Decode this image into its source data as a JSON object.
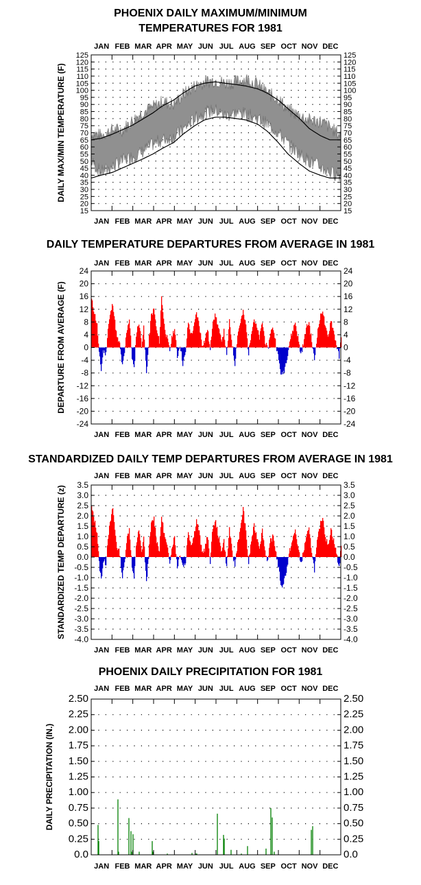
{
  "chart_data": [
    {
      "id": "maxmin",
      "type": "area",
      "title_lines": [
        "PHOENIX DAILY MAXIMUM/MINIMUM",
        "TEMPERATURES FOR 1981"
      ],
      "ylabel": "DAILY MAX/MIN TEMPERATURE (F)",
      "xlabel": "",
      "months": [
        "JAN",
        "FEB",
        "MAR",
        "APR",
        "MAY",
        "JUN",
        "JUL",
        "AUG",
        "SEP",
        "OCT",
        "NOV",
        "DEC"
      ],
      "ylim": [
        15,
        125
      ],
      "yticks": [
        15,
        20,
        25,
        30,
        35,
        40,
        45,
        50,
        55,
        60,
        65,
        70,
        75,
        80,
        85,
        90,
        95,
        100,
        105,
        110,
        115,
        120,
        125
      ],
      "grid": true,
      "series": [
        {
          "role": "observed_max",
          "x_day": [
            1,
            15,
            32,
            46,
            60,
            74,
            91,
            105,
            121,
            135,
            152,
            166,
            182,
            196,
            213,
            227,
            244,
            258,
            274,
            288,
            305,
            319,
            335,
            349,
            365
          ],
          "values": [
            70,
            68,
            72,
            72,
            78,
            84,
            88,
            92,
            90,
            97,
            103,
            106,
            107,
            105,
            106,
            108,
            104,
            98,
            94,
            86,
            82,
            79,
            78,
            74,
            68
          ]
        },
        {
          "role": "observed_min",
          "x_day": [
            1,
            15,
            32,
            46,
            60,
            74,
            91,
            105,
            121,
            135,
            152,
            166,
            182,
            196,
            213,
            227,
            244,
            258,
            274,
            288,
            305,
            319,
            335,
            349,
            365
          ],
          "values": [
            50,
            42,
            46,
            50,
            53,
            56,
            62,
            65,
            67,
            72,
            80,
            84,
            86,
            82,
            84,
            83,
            80,
            76,
            70,
            62,
            55,
            50,
            46,
            42,
            40
          ]
        },
        {
          "role": "normal_max",
          "x_day": [
            1,
            15,
            32,
            46,
            60,
            74,
            91,
            105,
            121,
            135,
            152,
            166,
            182,
            196,
            213,
            227,
            244,
            258,
            274,
            288,
            305,
            319,
            335,
            349,
            365
          ],
          "values": [
            65,
            66,
            69,
            72,
            75,
            79,
            84,
            89,
            93,
            98,
            103,
            105,
            106,
            105,
            104,
            103,
            101,
            98,
            93,
            87,
            80,
            73,
            68,
            65,
            65
          ]
        },
        {
          "role": "normal_min",
          "x_day": [
            1,
            15,
            32,
            46,
            60,
            74,
            91,
            105,
            121,
            135,
            152,
            166,
            182,
            196,
            213,
            227,
            244,
            258,
            274,
            288,
            305,
            319,
            335,
            349,
            365
          ],
          "values": [
            38,
            40,
            42,
            45,
            48,
            51,
            55,
            59,
            63,
            69,
            75,
            79,
            81,
            81,
            80,
            79,
            76,
            71,
            63,
            55,
            48,
            43,
            40,
            38,
            38
          ]
        }
      ]
    },
    {
      "id": "departure",
      "type": "area",
      "title": "DAILY TEMPERATURE DEPARTURES FROM AVERAGE IN 1981",
      "ylabel": "DEPARTURE FROM AVERAGE (F)",
      "xlabel": "",
      "months": [
        "JAN",
        "FEB",
        "MAR",
        "APR",
        "MAY",
        "JUN",
        "JUL",
        "AUG",
        "SEP",
        "OCT",
        "NOV",
        "DEC"
      ],
      "ylim": [
        -24,
        24
      ],
      "yticks": [
        -24,
        -20,
        -16,
        -12,
        -8,
        -4,
        0,
        4,
        8,
        12,
        16,
        20,
        24
      ],
      "grid": true,
      "positive_color": "#ff0000",
      "negative_color": "#0000cc",
      "x_day": [
        1,
        5,
        9,
        12,
        15,
        18,
        22,
        25,
        28,
        32,
        35,
        38,
        42,
        46,
        49,
        52,
        56,
        60,
        63,
        66,
        70,
        74,
        77,
        81,
        85,
        88,
        92,
        96,
        100,
        103,
        107,
        111,
        115,
        119,
        122,
        126,
        130,
        134,
        138,
        142,
        146,
        150,
        154,
        158,
        162,
        166,
        170,
        174,
        178,
        182,
        186,
        190,
        194,
        198,
        202,
        206,
        210,
        214,
        218,
        222,
        226,
        230,
        234,
        238,
        242,
        246,
        250,
        254,
        258,
        262,
        266,
        270,
        274,
        278,
        282,
        286,
        290,
        294,
        298,
        302,
        306,
        310,
        314,
        318,
        322,
        326,
        330,
        334,
        338,
        342,
        346,
        350,
        354,
        358,
        362,
        365
      ],
      "values": [
        15,
        11,
        7,
        -2,
        -7,
        -1,
        -2,
        6,
        10,
        14,
        8,
        3,
        1,
        -6,
        -2,
        5,
        9,
        -3,
        -7,
        4,
        8,
        1,
        6,
        -8,
        3,
        10,
        12,
        5,
        2,
        16,
        7,
        3,
        -1,
        4,
        6,
        -3,
        1,
        -5,
        -2,
        8,
        4,
        6,
        11,
        7,
        1,
        2,
        6,
        -1,
        9,
        10,
        6,
        2,
        5,
        -3,
        8,
        1,
        -5,
        4,
        8,
        11,
        7,
        -2,
        5,
        9,
        6,
        3,
        8,
        2,
        -1,
        5,
        6,
        1,
        -4,
        -9,
        -7,
        -3,
        2,
        5,
        8,
        3,
        -2,
        1,
        6,
        8,
        2,
        -4,
        4,
        9,
        12,
        6,
        3,
        9,
        5,
        1,
        -3,
        3
      ]
    },
    {
      "id": "standardized",
      "type": "area",
      "title": "STANDARDIZED DAILY TEMP DEPARTURES FROM AVERAGE IN 1981",
      "ylabel": "STANDARDIZED TEMP DEPARTURE (z)",
      "xlabel": "",
      "months": [
        "JAN",
        "FEB",
        "MAR",
        "APR",
        "MAY",
        "JUN",
        "JUL",
        "AUG",
        "SEP",
        "OCT",
        "NOV",
        "DEC"
      ],
      "ylim": [
        -4.0,
        3.5
      ],
      "yticks": [
        "-4.0",
        "-3.5",
        "-3.0",
        "-2.5",
        "-2.0",
        "-1.5",
        "-1.0",
        "-0.5",
        "0.0",
        "0.5",
        "1.0",
        "1.5",
        "2.0",
        "2.5",
        "3.0",
        "3.5"
      ],
      "grid": true,
      "positive_color": "#ff0000",
      "negative_color": "#0000cc",
      "x_day": [
        1,
        5,
        9,
        12,
        15,
        18,
        22,
        25,
        28,
        32,
        35,
        38,
        42,
        46,
        49,
        52,
        56,
        60,
        63,
        66,
        70,
        74,
        77,
        81,
        85,
        88,
        92,
        96,
        100,
        103,
        107,
        111,
        115,
        119,
        122,
        126,
        130,
        134,
        138,
        142,
        146,
        150,
        154,
        158,
        162,
        166,
        170,
        174,
        178,
        182,
        186,
        190,
        194,
        198,
        202,
        206,
        210,
        214,
        218,
        222,
        226,
        230,
        234,
        238,
        242,
        246,
        250,
        254,
        258,
        262,
        266,
        270,
        274,
        278,
        282,
        286,
        290,
        294,
        298,
        302,
        306,
        310,
        314,
        318,
        322,
        326,
        330,
        334,
        338,
        342,
        346,
        350,
        354,
        358,
        362,
        365
      ],
      "values": [
        2.4,
        1.8,
        1.2,
        -0.3,
        -1.1,
        -0.2,
        -0.3,
        1.0,
        1.6,
        2.4,
        1.3,
        0.5,
        0.2,
        -1.0,
        -0.3,
        0.8,
        1.4,
        -0.5,
        -1.1,
        0.6,
        1.3,
        0.2,
        1.0,
        -1.3,
        0.5,
        1.6,
        1.9,
        0.8,
        0.3,
        2.0,
        1.1,
        0.5,
        -0.2,
        0.6,
        1.0,
        -0.5,
        0.2,
        -0.4,
        -0.3,
        1.3,
        0.6,
        1.0,
        1.8,
        1.2,
        0.2,
        0.4,
        1.0,
        -0.2,
        1.5,
        1.7,
        1.0,
        0.3,
        0.8,
        -0.5,
        1.4,
        0.2,
        -0.4,
        0.7,
        1.3,
        2.4,
        1.2,
        -0.3,
        0.8,
        1.5,
        1.0,
        0.5,
        1.3,
        0.3,
        -0.2,
        0.8,
        1.0,
        0.2,
        -0.6,
        -1.5,
        -1.1,
        -0.5,
        0.3,
        0.8,
        1.3,
        0.5,
        -0.3,
        0.2,
        1.0,
        1.3,
        0.3,
        -0.6,
        0.7,
        1.5,
        2.0,
        1.0,
        0.5,
        1.4,
        0.8,
        0.2,
        -0.5,
        0.5
      ]
    },
    {
      "id": "precip",
      "type": "bar",
      "title": "PHOENIX DAILY PRECIPITATION FOR 1981",
      "ylabel": "DAILY PRECIPITATION (IN.)",
      "xlabel": "",
      "months": [
        "JAN",
        "FEB",
        "MAR",
        "APR",
        "MAY",
        "JUN",
        "JUL",
        "AUG",
        "SEP",
        "OCT",
        "NOV",
        "DEC"
      ],
      "ylim": [
        0,
        2.5
      ],
      "yticks": [
        "0.0",
        "0.25",
        "0.50",
        "0.75",
        "1.00",
        "1.25",
        "1.50",
        "1.75",
        "2.00",
        "2.25",
        "2.50"
      ],
      "grid": true,
      "bar_color": "#008000",
      "x_day": [
        11,
        12,
        40,
        41,
        56,
        59,
        60,
        62,
        71,
        90,
        91,
        112,
        148,
        154,
        155,
        185,
        194,
        195,
        205,
        220,
        229,
        256,
        263,
        265,
        268,
        322,
        324
      ],
      "values": [
        0.48,
        0.22,
        0.89,
        0.05,
        0.59,
        0.38,
        0.05,
        0.33,
        0.05,
        0.22,
        0.05,
        0.02,
        0.03,
        0.02,
        0.02,
        0.66,
        0.32,
        0.26,
        0.08,
        0.02,
        0.14,
        0.1,
        0.75,
        0.6,
        0.05,
        0.4,
        0.46
      ]
    }
  ]
}
